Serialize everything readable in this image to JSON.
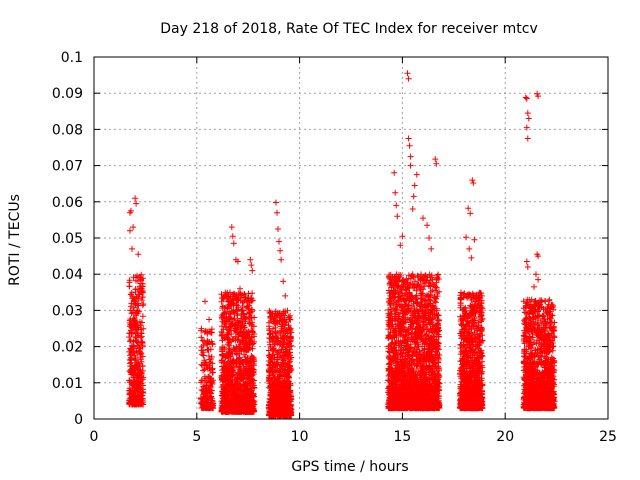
{
  "chart_data": {
    "type": "scatter",
    "title": "Day 218 of 2018, Rate Of TEC Index for receiver mtcv",
    "xlabel": "GPS time / hours",
    "ylabel": "ROTI / TECUs",
    "xlim": [
      0,
      25
    ],
    "ylim": [
      0,
      0.1
    ],
    "grid": true,
    "marker": "+",
    "color": "#ff0000",
    "x_ticks": [
      0,
      5,
      10,
      15,
      20,
      25
    ],
    "x_tick_labels": [
      "0",
      "5",
      "10",
      "15",
      "20",
      "25"
    ],
    "y_ticks": [
      0,
      0.01,
      0.02,
      0.03,
      0.04,
      0.05,
      0.06,
      0.07,
      0.08,
      0.09,
      0.1
    ],
    "y_tick_labels": [
      "0",
      "0.01",
      "0.02",
      "0.03",
      "0.04",
      "0.05",
      "0.06",
      "0.07",
      "0.08",
      "0.09",
      "0.1"
    ],
    "clusters": [
      {
        "x_range": [
          1.7,
          2.4
        ],
        "y_min": 0.004,
        "y_max": 0.04,
        "count": 420,
        "outliers": [
          [
            1.75,
            0.057
          ],
          [
            1.8,
            0.0575
          ],
          [
            2.0,
            0.061
          ],
          [
            2.05,
            0.0595
          ],
          [
            1.9,
            0.053
          ],
          [
            1.75,
            0.052
          ],
          [
            2.15,
            0.0455
          ],
          [
            1.85,
            0.047
          ]
        ]
      },
      {
        "x_range": [
          5.2,
          5.8
        ],
        "y_min": 0.003,
        "y_max": 0.025,
        "count": 200,
        "outliers": [
          [
            5.4,
            0.0325
          ],
          [
            5.6,
            0.0275
          ]
        ]
      },
      {
        "x_range": [
          6.2,
          7.8
        ],
        "y_min": 0.002,
        "y_max": 0.035,
        "count": 1300,
        "outliers": [
          [
            6.7,
            0.053
          ],
          [
            6.75,
            0.0505
          ],
          [
            6.8,
            0.0485
          ],
          [
            6.9,
            0.044
          ],
          [
            7.0,
            0.0435
          ],
          [
            7.1,
            0.036
          ],
          [
            7.6,
            0.044
          ],
          [
            7.65,
            0.0425
          ],
          [
            7.7,
            0.041
          ]
        ]
      },
      {
        "x_range": [
          8.5,
          9.6
        ],
        "y_min": 0.001,
        "y_max": 0.03,
        "count": 900,
        "outliers": [
          [
            8.85,
            0.0598
          ],
          [
            8.9,
            0.057
          ],
          [
            8.95,
            0.0525
          ],
          [
            9.0,
            0.049
          ],
          [
            9.05,
            0.0465
          ],
          [
            9.1,
            0.044
          ],
          [
            9.2,
            0.038
          ],
          [
            9.3,
            0.034
          ]
        ]
      },
      {
        "x_range": [
          14.3,
          16.8
        ],
        "y_min": 0.003,
        "y_max": 0.04,
        "count": 2300,
        "outliers": [
          [
            14.6,
            0.068
          ],
          [
            14.65,
            0.0625
          ],
          [
            14.7,
            0.059
          ],
          [
            14.75,
            0.056
          ],
          [
            15.25,
            0.0955
          ],
          [
            15.3,
            0.094
          ],
          [
            15.3,
            0.0775
          ],
          [
            15.35,
            0.0755
          ],
          [
            15.4,
            0.0725
          ],
          [
            15.4,
            0.07
          ],
          [
            15.7,
            0.0675
          ],
          [
            15.6,
            0.0645
          ],
          [
            15.55,
            0.0615
          ],
          [
            15.5,
            0.058
          ],
          [
            16.0,
            0.0555
          ],
          [
            16.2,
            0.0535
          ],
          [
            16.3,
            0.05
          ],
          [
            16.6,
            0.0718
          ],
          [
            16.65,
            0.0705
          ],
          [
            15.0,
            0.0505
          ],
          [
            14.9,
            0.048
          ],
          [
            16.4,
            0.047
          ]
        ]
      },
      {
        "x_range": [
          17.8,
          18.9
        ],
        "y_min": 0.003,
        "y_max": 0.035,
        "count": 1000,
        "outliers": [
          [
            18.4,
            0.066
          ],
          [
            18.45,
            0.0652
          ],
          [
            18.2,
            0.0582
          ],
          [
            18.3,
            0.0568
          ],
          [
            18.1,
            0.0502
          ],
          [
            18.5,
            0.0495
          ],
          [
            18.25,
            0.047
          ],
          [
            18.35,
            0.0445
          ]
        ]
      },
      {
        "x_range": [
          20.9,
          22.4
        ],
        "y_min": 0.003,
        "y_max": 0.033,
        "count": 1300,
        "outliers": [
          [
            21.0,
            0.0888
          ],
          [
            21.05,
            0.0885
          ],
          [
            21.1,
            0.0845
          ],
          [
            21.15,
            0.083
          ],
          [
            21.05,
            0.0805
          ],
          [
            21.1,
            0.0775
          ],
          [
            21.55,
            0.0898
          ],
          [
            21.6,
            0.0892
          ],
          [
            21.05,
            0.0435
          ],
          [
            21.1,
            0.042
          ],
          [
            21.55,
            0.0455
          ],
          [
            21.6,
            0.045
          ],
          [
            21.5,
            0.04
          ],
          [
            21.6,
            0.0385
          ],
          [
            21.4,
            0.0365
          ]
        ]
      }
    ]
  }
}
